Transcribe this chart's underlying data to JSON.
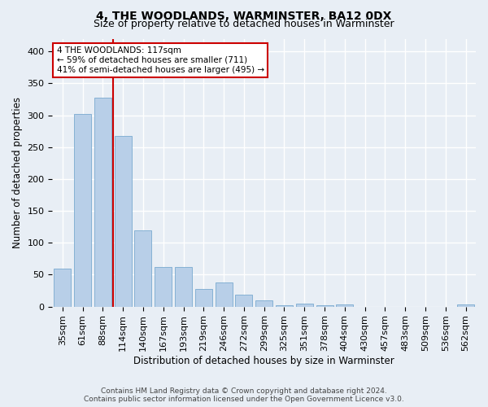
{
  "title": "4, THE WOODLANDS, WARMINSTER, BA12 0DX",
  "subtitle": "Size of property relative to detached houses in Warminster",
  "xlabel": "Distribution of detached houses by size in Warminster",
  "ylabel": "Number of detached properties",
  "categories": [
    "35sqm",
    "61sqm",
    "88sqm",
    "114sqm",
    "140sqm",
    "167sqm",
    "193sqm",
    "219sqm",
    "246sqm",
    "272sqm",
    "299sqm",
    "325sqm",
    "351sqm",
    "378sqm",
    "404sqm",
    "430sqm",
    "457sqm",
    "483sqm",
    "509sqm",
    "536sqm",
    "562sqm"
  ],
  "values": [
    60,
    302,
    328,
    268,
    120,
    62,
    62,
    28,
    38,
    18,
    10,
    2,
    5,
    2,
    3,
    0,
    0,
    0,
    0,
    0,
    3
  ],
  "bar_color": "#b8cfe8",
  "bar_edge_color": "#7aaad0",
  "vline_x_index": 2.5,
  "vline_color": "#cc0000",
  "annotation_text": "4 THE WOODLANDS: 117sqm\n← 59% of detached houses are smaller (711)\n41% of semi-detached houses are larger (495) →",
  "annotation_box_color": "#ffffff",
  "annotation_box_edge_color": "#cc0000",
  "ylim": [
    0,
    420
  ],
  "yticks": [
    0,
    50,
    100,
    150,
    200,
    250,
    300,
    350,
    400
  ],
  "background_color": "#e8eef5",
  "plot_background_color": "#e8eef5",
  "grid_color": "#ffffff",
  "footer_line1": "Contains HM Land Registry data © Crown copyright and database right 2024.",
  "footer_line2": "Contains public sector information licensed under the Open Government Licence v3.0.",
  "title_fontsize": 10,
  "subtitle_fontsize": 9,
  "xlabel_fontsize": 8.5,
  "ylabel_fontsize": 8.5,
  "tick_fontsize": 8,
  "annotation_fontsize": 7.5,
  "footer_fontsize": 6.5
}
